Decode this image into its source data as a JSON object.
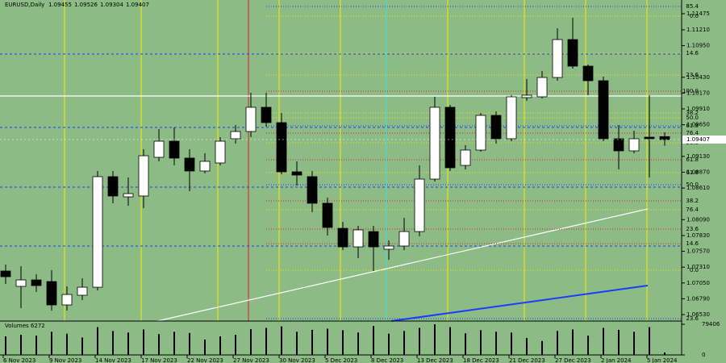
{
  "chart_data": {
    "type": "candlestick",
    "symbol": "EURUSD,Daily",
    "volume_label": "Volumes 6272",
    "categories": [
      "6 Nov 2023",
      null,
      null,
      "9 Nov 2023",
      null,
      null,
      "14 Nov 2023",
      null,
      null,
      "17 Nov 2023",
      null,
      null,
      "22 Nov 2023",
      null,
      null,
      "27 Nov 2023",
      null,
      null,
      "30 Nov 2023",
      null,
      null,
      "5 Dec 2023",
      null,
      null,
      "8 Dec 2023",
      null,
      null,
      "13 Dec 2023",
      null,
      null,
      "18 Dec 2023",
      null,
      null,
      "21 Dec 2023",
      null,
      null,
      "27 Dec 2023",
      null,
      null,
      "2 Jan 2024",
      null,
      null,
      "5 Jan 2024",
      null
    ],
    "open": [
      1.07246,
      1.06994,
      1.071,
      1.07073,
      1.06689,
      1.06848,
      1.0698,
      1.08797,
      1.08465,
      1.08479,
      1.09115,
      1.0938,
      1.09102,
      1.0889,
      1.09022,
      1.0942,
      1.09539,
      1.09937,
      1.09685,
      1.08876,
      1.08797,
      1.0836,
      1.07948,
      1.07643,
      1.07895,
      1.07604,
      1.07657,
      1.07895,
      1.08757,
      1.09937,
      1.08982,
      1.09234,
      1.09804,
      1.0942,
      1.10096,
      1.10109,
      1.10427,
      1.1105,
      1.10613,
      1.10374,
      1.0942,
      1.09221,
      1.09446,
      1.09455
    ],
    "high": [
      1.07352,
      1.07325,
      1.07193,
      1.07259,
      1.06994,
      1.07126,
      1.0889,
      1.0889,
      1.08783,
      1.09247,
      1.09579,
      1.09605,
      1.09247,
      1.09181,
      1.09446,
      1.09645,
      1.10175,
      1.10175,
      1.09844,
      1.09049,
      1.0889,
      1.08452,
      1.08054,
      1.07988,
      1.07988,
      1.0775,
      1.08121,
      1.08982,
      1.10109,
      1.09976,
      1.09314,
      1.09844,
      1.0987,
      1.10136,
      1.10401,
      1.10533,
      1.11236,
      1.11408,
      1.10639,
      1.10441,
      1.09645,
      1.09552,
      1.10136,
      1.09526
    ],
    "low": [
      1.07034,
      1.06636,
      1.06901,
      1.06596,
      1.06596,
      1.06768,
      1.06927,
      1.0836,
      1.0832,
      1.0828,
      1.09049,
      1.08982,
      1.08558,
      1.0885,
      1.08982,
      1.0934,
      1.09446,
      1.09619,
      1.08836,
      1.08651,
      1.08213,
      1.07829,
      1.0759,
      1.07458,
      1.07246,
      1.07431,
      1.0759,
      1.07816,
      1.08717,
      1.0889,
      1.08916,
      1.09208,
      1.0934,
      1.0938,
      1.10043,
      1.10083,
      1.10374,
      1.10573,
      1.10136,
      1.0938,
      1.08916,
      1.09181,
      1.08784,
      1.09304
    ],
    "close": [
      1.07153,
      1.071,
      1.07007,
      1.06689,
      1.06861,
      1.0698,
      1.08797,
      1.08479,
      1.08518,
      1.09141,
      1.0938,
      1.09102,
      1.0889,
      1.09049,
      1.0938,
      1.09539,
      1.09937,
      1.09685,
      1.08876,
      1.08823,
      1.0836,
      1.07962,
      1.07643,
      1.07922,
      1.07643,
      1.07657,
      1.07895,
      1.08757,
      1.09937,
      1.08943,
      1.09234,
      1.09804,
      1.0942,
      1.10109,
      1.10136,
      1.10427,
      1.1105,
      1.10613,
      1.10374,
      1.0942,
      1.09221,
      1.0942,
      1.0942,
      1.09407
    ],
    "volume": [
      48000,
      52000,
      50000,
      60000,
      55000,
      45000,
      72000,
      62000,
      58000,
      66000,
      54000,
      60000,
      57000,
      40000,
      48000,
      52000,
      67000,
      70000,
      74000,
      60000,
      65000,
      68000,
      64000,
      58000,
      75000,
      55000,
      62000,
      70000,
      79406,
      72000,
      56000,
      64000,
      60000,
      58000,
      44000,
      36000,
      62000,
      66000,
      50000,
      70000,
      65000,
      60000,
      72000,
      6272
    ],
    "ylim": [
      1.06424,
      1.117
    ],
    "yticks": [
      1.11475,
      {
        "value": 1.1121,
        "label": "1.11210"
      },
      {
        "value": 1.1095,
        "label": "1.10950"
      },
      {
        "value": 1.1043,
        "label": "1.10430"
      },
      {
        "value": 1.1017,
        "label": "1.10170"
      },
      {
        "value": 1.0991,
        "label": "1.09910"
      },
      {
        "value": 1.0965,
        "label": "1.09650"
      },
      {
        "value": 1.0913,
        "label": "1.09130"
      },
      {
        "value": 1.0887,
        "label": "1.08870"
      },
      {
        "value": 1.0861,
        "label": "1.08610"
      },
      {
        "value": 1.0809,
        "label": "1.08090"
      },
      {
        "value": 1.0783,
        "label": "1.07830"
      },
      {
        "value": 1.0757,
        "label": "1.07570"
      },
      {
        "value": 1.0731,
        "label": "1.07310"
      },
      {
        "value": 1.0705,
        "label": "1.07050"
      },
      {
        "value": 1.0679,
        "label": "1.06790"
      },
      {
        "value": 1.0653,
        "label": "1.06530"
      }
    ],
    "vlim": [
      0,
      79406
    ],
    "vticks": [
      79406,
      0
    ],
    "fib_levels": [
      {
        "label": "85.4",
        "price": 1.11594,
        "color": "#1a3cff"
      },
      {
        "label": "0.0",
        "price": 1.11435,
        "color": "#e8e800"
      },
      {
        "label": "14.6",
        "price": 1.10825,
        "color": "#e8e800"
      },
      {
        "label": "23.6",
        "price": 1.10467,
        "color": "#e8e800"
      },
      {
        "label": "100.0",
        "price": 1.10202,
        "color": "#e02020"
      },
      {
        "label": "38.2",
        "price": 1.09844,
        "color": "#e8e800"
      },
      {
        "label": "50.0",
        "price": 1.09765,
        "color": "#e8e800"
      },
      {
        "label": "61.8",
        "price": 1.09632,
        "color": "#1a3cff"
      },
      {
        "label": "76.4",
        "price": 1.09513,
        "color": "#e02020"
      },
      {
        "label": "50.0",
        "price": 1.09353,
        "color": "#e8e800"
      },
      {
        "label": "61.8",
        "price": 1.09075,
        "color": "#e02020"
      },
      {
        "label": "61.8",
        "price": 1.08863,
        "color": "#e8e800"
      },
      {
        "label": "50.0",
        "price": 1.08664,
        "color": "#1a3cff"
      },
      {
        "label": "38.2",
        "price": 1.08399,
        "color": "#e02020"
      },
      {
        "label": "76.4",
        "price": 1.08253,
        "color": "#e8e800"
      },
      {
        "label": "23.6",
        "price": 1.07935,
        "color": "#e02020"
      },
      {
        "label": "14.6",
        "price": 1.07696,
        "color": "#e02020"
      },
      {
        "label": "0.0",
        "price": 1.07259,
        "color": "#e8e800"
      },
      {
        "label": "23.6",
        "price": 1.06464,
        "color": "#1a3cff"
      }
    ],
    "up_color": "#ffffff",
    "down_color": "#000000",
    "wick_color": "#000000"
  }
}
